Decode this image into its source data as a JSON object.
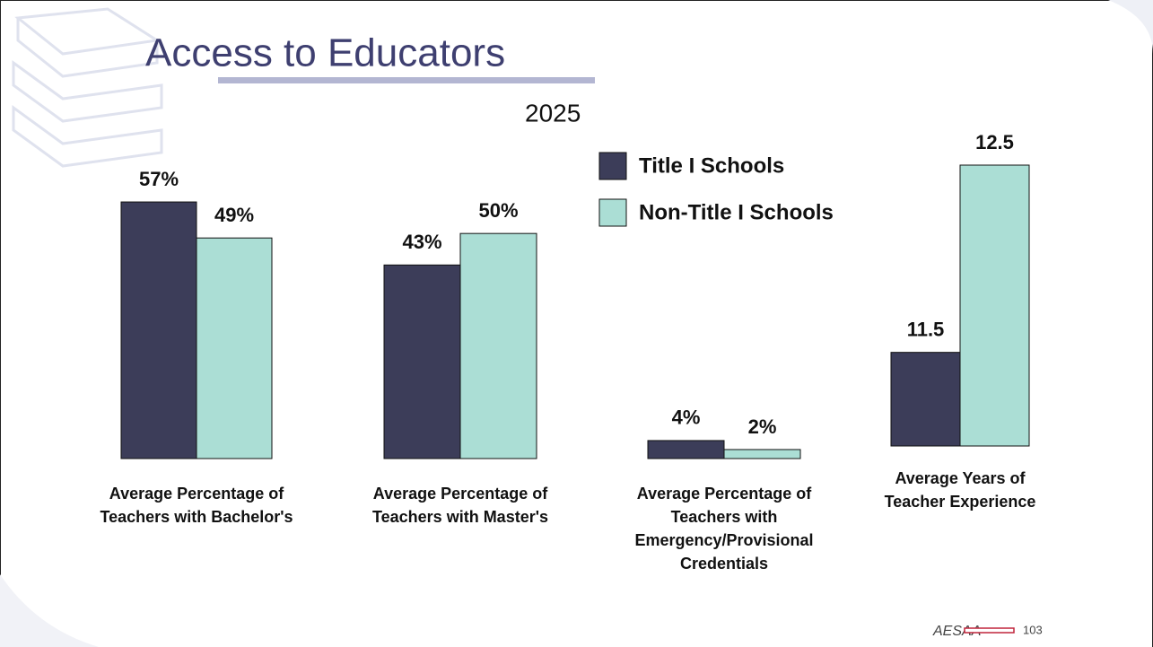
{
  "title": "Access to Educators",
  "subtitle": "2025",
  "legend": [
    {
      "name": "Title I Schools",
      "color": "#3c3d59"
    },
    {
      "name": "Non-Title I Schools",
      "color": "#abded5"
    }
  ],
  "chart_data": [
    {
      "type": "bar",
      "categories": [
        "Average Percentage of Teachers with Bachelor's"
      ],
      "ylim": [
        0,
        60
      ],
      "series": [
        {
          "values": [
            57
          ],
          "value_labels": [
            "57%"
          ]
        },
        {
          "values": [
            49
          ],
          "value_labels": [
            "49%"
          ]
        }
      ]
    },
    {
      "type": "bar",
      "categories": [
        "Average Percentage of Teachers with Master's"
      ],
      "ylim": [
        0,
        60
      ],
      "series": [
        {
          "values": [
            43
          ],
          "value_labels": [
            "43%"
          ]
        },
        {
          "values": [
            50
          ],
          "value_labels": [
            "50%"
          ]
        }
      ]
    },
    {
      "type": "bar",
      "categories": [
        "Average Percentage of Teachers with Emergency/Provisional Credentials"
      ],
      "ylim": [
        0,
        60
      ],
      "series": [
        {
          "values": [
            4
          ],
          "value_labels": [
            "4%"
          ]
        },
        {
          "values": [
            2
          ],
          "value_labels": [
            "2%"
          ]
        }
      ]
    },
    {
      "type": "bar",
      "categories": [
        "Average Years of Teacher Experience"
      ],
      "ylim": [
        11,
        12.5
      ],
      "series": [
        {
          "values": [
            11.5
          ]
        },
        {
          "values": [
            12.5
          ]
        }
      ]
    }
  ],
  "footer": {
    "org": "AESAA",
    "page": "103"
  }
}
